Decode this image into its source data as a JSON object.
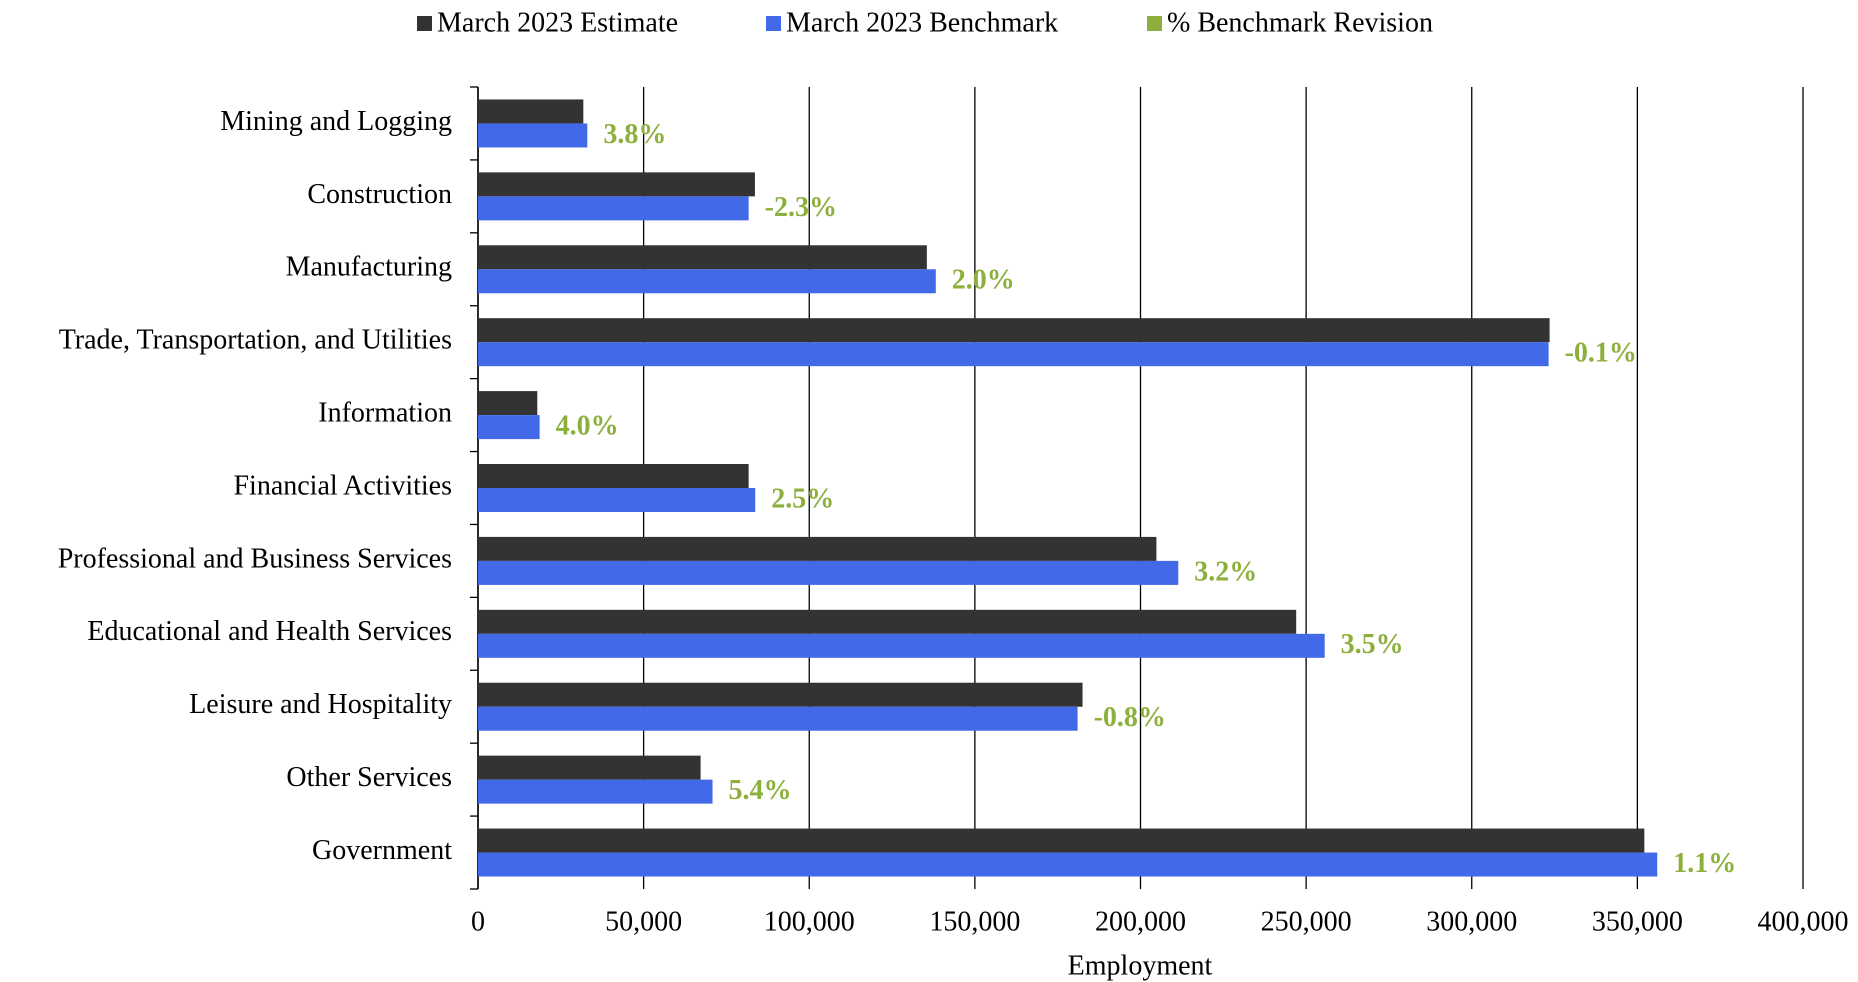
{
  "chart_data": {
    "type": "hbar",
    "categories": [
      "Mining and Logging",
      "Construction",
      "Manufacturing",
      "Trade, Transportation, and Utilities",
      "Information",
      "Financial Activities",
      "Professional and Business Services",
      "Educational and Health Services",
      "Leisure and Hospitality",
      "Other Services",
      "Government"
    ],
    "series": [
      {
        "name": "March 2023 Estimate",
        "color": "#333333",
        "values": [
          31800,
          83600,
          135500,
          323500,
          17900,
          81700,
          204800,
          247000,
          182500,
          67200,
          352100
        ]
      },
      {
        "name": "March 2023 Benchmark",
        "color": "#4169e8",
        "values": [
          33000,
          81700,
          138200,
          323200,
          18600,
          83700,
          211400,
          255600,
          181000,
          70800,
          356000
        ]
      },
      {
        "name": "% Benchmark Revision",
        "color": "#8db03c",
        "values": [
          3.8,
          -2.3,
          2.0,
          -0.1,
          4.0,
          2.5,
          3.2,
          3.5,
          -0.8,
          5.4,
          1.1
        ],
        "value_labels": [
          "3.8%",
          "-2.3%",
          "2.0%",
          "-0.1%",
          "4.0%",
          "2.5%",
          "3.2%",
          "3.5%",
          "-0.8%",
          "5.4%",
          "1.1%"
        ]
      }
    ],
    "xlabel": "Employment",
    "xlim": [
      0,
      400000
    ],
    "xticks": [
      0,
      {
        "value": 50000,
        "label": "50,000"
      },
      {
        "value": 100000,
        "label": "100,000"
      },
      {
        "value": 150000,
        "label": "150,000"
      },
      {
        "value": 200000,
        "label": "200,000"
      },
      {
        "value": 250000,
        "label": "250,000"
      },
      {
        "value": 300000,
        "label": "300,000"
      },
      {
        "value": 350000,
        "label": "350,000"
      },
      {
        "value": 400000,
        "label": "400,000"
      }
    ],
    "grid": true,
    "legend": "top"
  }
}
